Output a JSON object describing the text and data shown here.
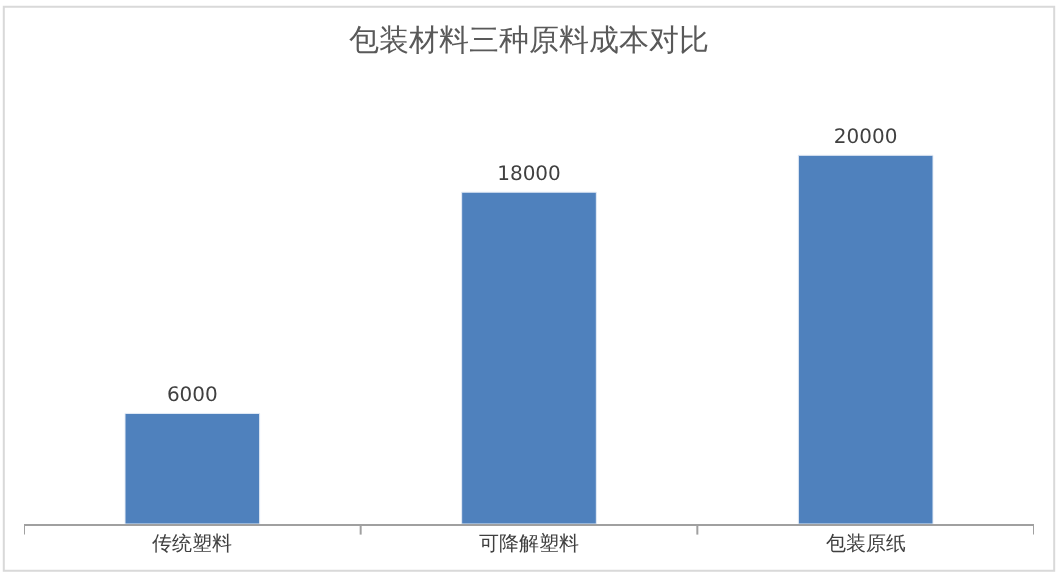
{
  "chart_data": {
    "type": "bar",
    "title": "包装材料三种原料成本对比",
    "categories": [
      "传统塑料",
      "可降解塑料",
      "包装原纸"
    ],
    "values": [
      6000,
      18000,
      20000
    ],
    "color": "#4f81bd",
    "data_labels": true
  }
}
